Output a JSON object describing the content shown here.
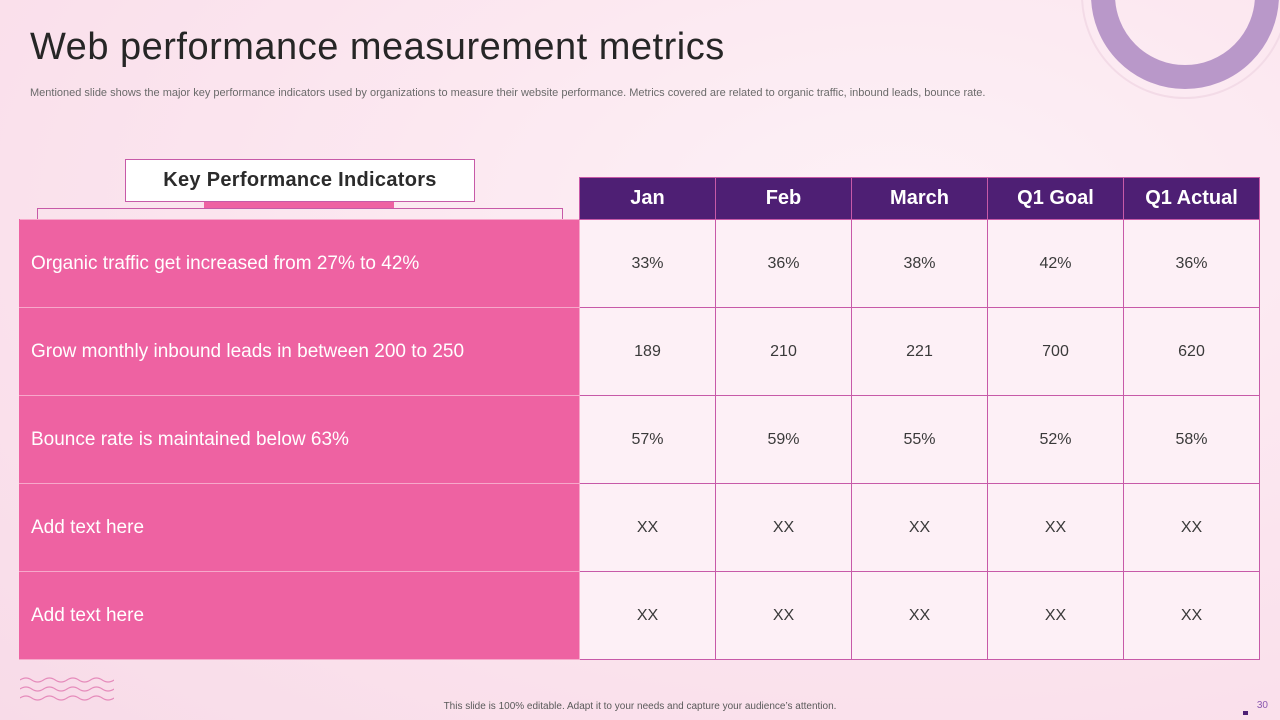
{
  "slide": {
    "title": "Web performance measurement metrics",
    "subtitle": "Mentioned slide shows the major key performance indicators used by organizations to measure their website performance. Metrics covered are related to organic traffic, inbound leads, bounce rate.",
    "footer": "This slide is 100% editable.  Adapt it to your needs and capture your audience’s attention.",
    "page_number": "30"
  },
  "kpi_header": "Key Performance Indicators",
  "table": {
    "columns": [
      "Jan",
      "Feb",
      "March",
      "Q1 Goal",
      "Q1 Actual"
    ],
    "rows": [
      {
        "label": "Organic traffic get increased from 27% to 42%",
        "values": [
          "33%",
          "36%",
          "38%",
          "42%",
          "36%"
        ]
      },
      {
        "label": "Grow monthly inbound leads in between 200 to 250",
        "values": [
          "189",
          "210",
          "221",
          "700",
          "620"
        ]
      },
      {
        "label": "Bounce rate is maintained below 63%",
        "values": [
          "57%",
          "59%",
          "55%",
          "52%",
          "58%"
        ]
      },
      {
        "label": "Add text here",
        "values": [
          "XX",
          "XX",
          "XX",
          "XX",
          "XX"
        ]
      },
      {
        "label": "Add text here",
        "values": [
          "XX",
          "XX",
          "XX",
          "XX",
          "XX"
        ]
      }
    ]
  },
  "colors": {
    "header_purple": "#4e1f74",
    "label_pink": "#ee62a2",
    "border": "#c75aa8",
    "ring": "#b998c9"
  }
}
